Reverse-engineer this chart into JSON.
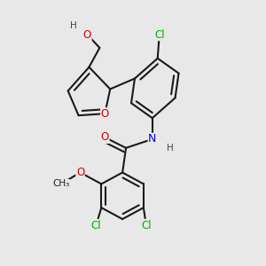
{
  "bg_color": "#e8e8e8",
  "bond_color": "#1a1a1a",
  "bond_width": 1.5,
  "font_size": 8.5,
  "atom_colors": {
    "O": "#cc0000",
    "N": "#0000cc",
    "Cl": "#00aa00",
    "H": "#444444",
    "C": "#1a1a1a"
  },
  "figsize": [
    3.0,
    3.0
  ],
  "dpi": 100
}
